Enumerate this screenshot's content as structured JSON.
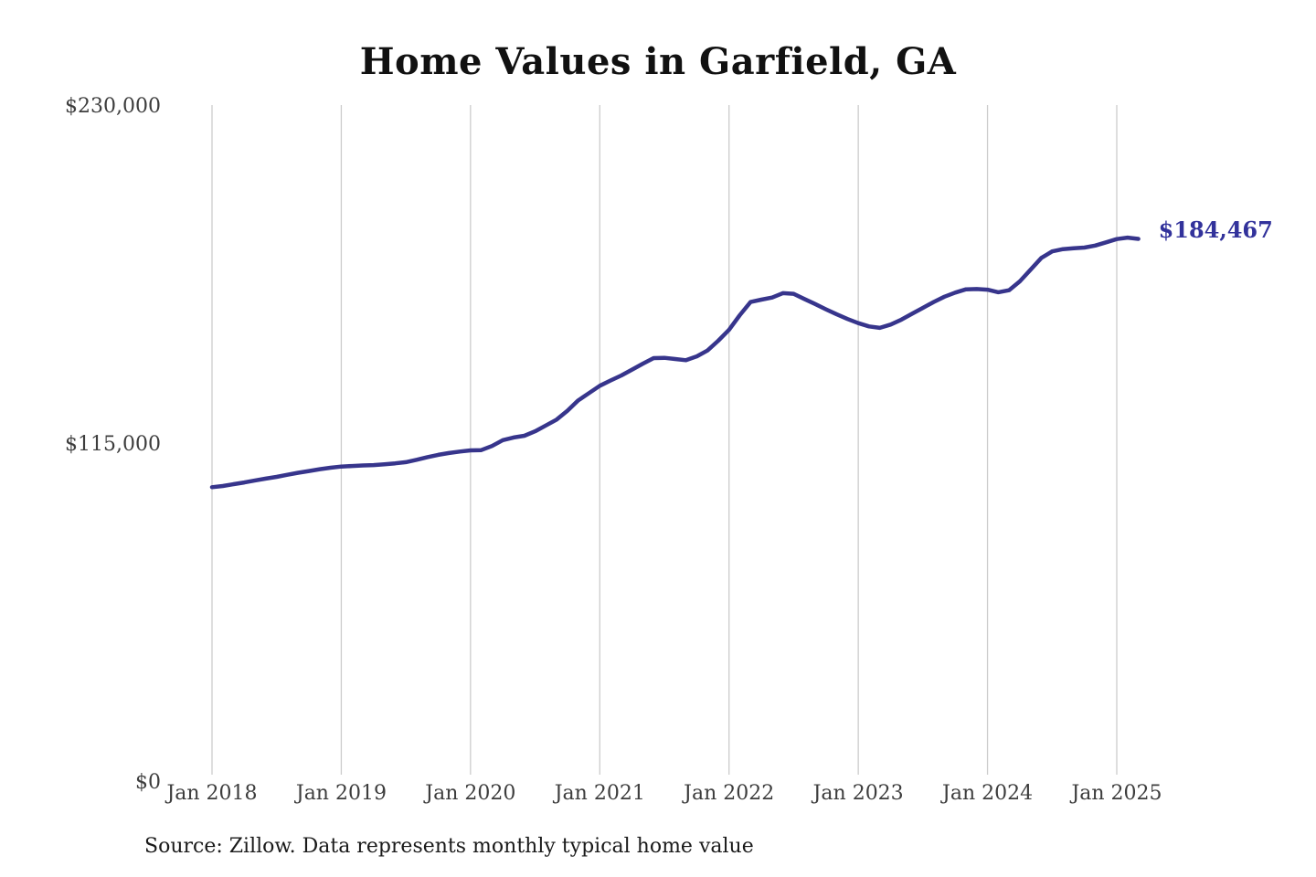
{
  "chart": {
    "title": "Home Values in Garfield, GA",
    "end_label": "$184,467",
    "source": "Source: Zillow. Data represents monthly typical home value",
    "colors": {
      "line": "#37358c",
      "end_label": "#32329b",
      "grid": "#cccccc",
      "axis_text": "#3d3d3d",
      "title_text": "#111111"
    }
  },
  "chart_data": {
    "type": "line",
    "title": "Home Values in Garfield, GA",
    "xlabel": "",
    "ylabel": "",
    "unit": "USD",
    "ylim": [
      0,
      230000
    ],
    "grid": "vertical-only",
    "legend": "none",
    "start_month": "Jan 2018",
    "end_month": "Mar 2025",
    "x_tick_labels": [
      "Jan 2018",
      "Jan 2019",
      "Jan 2020",
      "Jan 2021",
      "Jan 2022",
      "Jan 2023",
      "Jan 2024",
      "Jan 2025"
    ],
    "y_tick_labels": [
      "$0",
      "$115,000",
      "$230,000"
    ],
    "final_value": 184467,
    "series": [
      {
        "name": "Monthly typical home value",
        "values": [
          100000,
          100400,
          101000,
          101600,
          102300,
          102900,
          103500,
          104200,
          104900,
          105500,
          106100,
          106600,
          107000,
          107200,
          107400,
          107500,
          107800,
          108100,
          108500,
          109300,
          110200,
          111000,
          111600,
          112100,
          112500,
          112600,
          114000,
          116000,
          116900,
          117500,
          119000,
          121000,
          123000,
          126000,
          129500,
          132000,
          134500,
          136300,
          138000,
          140000,
          142000,
          143900,
          144000,
          143600,
          143200,
          144500,
          146500,
          149800,
          153500,
          158500,
          163000,
          163800,
          164500,
          166000,
          165800,
          164000,
          162300,
          160500,
          158800,
          157200,
          155800,
          154700,
          154200,
          155300,
          157000,
          159000,
          161000,
          163000,
          164800,
          166200,
          167300,
          167400,
          167200,
          166300,
          167000,
          170000,
          174000,
          178000,
          180200,
          181000,
          181300,
          181500,
          182200,
          183300,
          184400,
          184900,
          184467
        ]
      }
    ]
  }
}
